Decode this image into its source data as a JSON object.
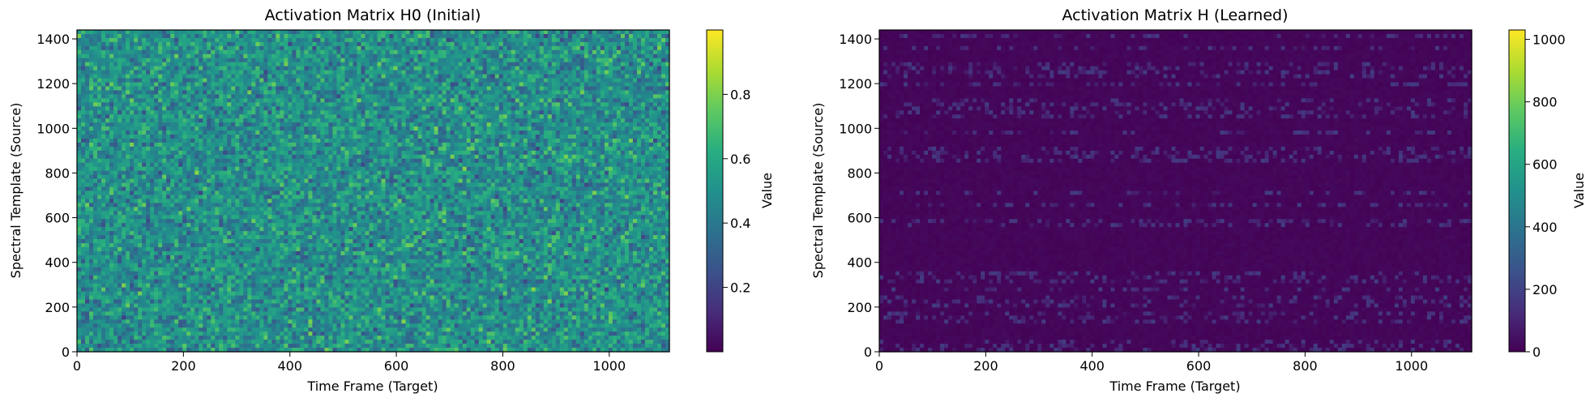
{
  "chart_data": [
    {
      "type": "heatmap",
      "title": "Activation Matrix H0 (Initial)",
      "xlabel": "Time Frame (Target)",
      "ylabel": "Spectral Template (Source)",
      "colorbar_label": "Value",
      "colormap": "viridis",
      "xlim": [
        0,
        1113
      ],
      "ylim": [
        0,
        1440
      ],
      "xticks": [
        0,
        200,
        400,
        600,
        800,
        1000
      ],
      "yticks": [
        0,
        200,
        400,
        600,
        800,
        1000,
        1200,
        1400
      ],
      "value_range": [
        0,
        1
      ],
      "colorbar_ticks": [
        0.2,
        0.4,
        0.6,
        0.8
      ],
      "value_distribution": "uniform random noise, mean approximately 0.5",
      "grid": false
    },
    {
      "type": "heatmap",
      "title": "Activation Matrix H (Learned)",
      "xlabel": "Time Frame (Target)",
      "ylabel": "Spectral Template (Source)",
      "colorbar_label": "Value",
      "colormap": "viridis",
      "xlim": [
        0,
        1113
      ],
      "ylim": [
        0,
        1440
      ],
      "xticks": [
        0,
        200,
        400,
        600,
        800,
        1000
      ],
      "yticks": [
        0,
        200,
        400,
        600,
        800,
        1000,
        1200,
        1400
      ],
      "value_range": [
        0,
        1030
      ],
      "colorbar_ticks": [
        0,
        200,
        400,
        600,
        800,
        1000
      ],
      "value_distribution": "sparse, mostly near 0 with faint horizontal streaks of low activation",
      "grid": false
    }
  ]
}
